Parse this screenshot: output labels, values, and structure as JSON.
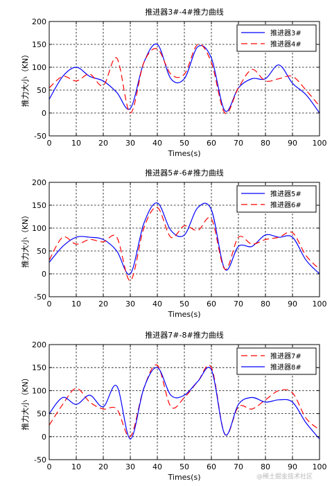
{
  "watermark": "@稀土掘金技术社区",
  "chart_data": [
    {
      "type": "line",
      "title": "推进器3#-4#推力曲线",
      "xlabel": "Times(s)",
      "ylabel": "推力大小（KN）",
      "xlim": [
        0,
        100
      ],
      "ylim": [
        -50,
        200
      ],
      "xticks": [
        "0",
        "10",
        "20",
        "30",
        "40",
        "50",
        "60",
        "70",
        "80",
        "90",
        "100"
      ],
      "yticks": [
        "200",
        "150",
        "100",
        "50",
        "0",
        "-50"
      ],
      "grid": true,
      "legend_position": "top-right",
      "x": [
        0,
        5,
        10,
        15,
        20,
        25,
        30,
        35,
        40,
        45,
        50,
        55,
        60,
        65,
        70,
        75,
        80,
        85,
        90,
        95,
        100
      ],
      "series": [
        {
          "name": "推进器3#",
          "color": "#0000ff",
          "style": "solid",
          "values": [
            30,
            80,
            100,
            80,
            70,
            45,
            10,
            110,
            150,
            75,
            75,
            145,
            120,
            5,
            55,
            75,
            75,
            105,
            65,
            40,
            0
          ]
        },
        {
          "name": "推进器4#",
          "color": "#ff0000",
          "style": "dashed",
          "values": [
            55,
            80,
            70,
            85,
            60,
            120,
            0,
            110,
            140,
            85,
            85,
            150,
            110,
            0,
            55,
            95,
            70,
            75,
            80,
            50,
            15
          ]
        }
      ]
    },
    {
      "type": "line",
      "title": "推进器5#-6#推力曲线",
      "xlabel": "Times(s)",
      "ylabel": "推力大小（KN）",
      "xlim": [
        0,
        100
      ],
      "ylim": [
        -50,
        200
      ],
      "xticks": [
        "0",
        "10",
        "20",
        "30",
        "40",
        "50",
        "60",
        "70",
        "80",
        "90",
        "100"
      ],
      "yticks": [
        "200",
        "150",
        "100",
        "50",
        "0",
        "-50"
      ],
      "grid": true,
      "legend_position": "top-right",
      "x": [
        0,
        5,
        10,
        15,
        20,
        25,
        30,
        35,
        40,
        45,
        50,
        55,
        60,
        65,
        70,
        75,
        80,
        85,
        90,
        95,
        100
      ],
      "series": [
        {
          "name": "推进器5#",
          "color": "#0000ff",
          "style": "solid",
          "values": [
            25,
            60,
            80,
            80,
            75,
            50,
            0,
            110,
            155,
            95,
            85,
            145,
            140,
            10,
            60,
            60,
            85,
            80,
            80,
            30,
            0
          ]
        },
        {
          "name": "推进器6#",
          "color": "#ff0000",
          "style": "dashed",
          "values": [
            30,
            80,
            65,
            75,
            70,
            80,
            -15,
            100,
            145,
            80,
            105,
            95,
            120,
            10,
            80,
            65,
            75,
            80,
            90,
            40,
            10
          ]
        }
      ]
    },
    {
      "type": "line",
      "title": "推进器7#-8#推力曲线",
      "xlabel": "Times(s)",
      "ylabel": "推力大小（KN）",
      "xlim": [
        0,
        100
      ],
      "ylim": [
        -50,
        200
      ],
      "xticks": [
        "0",
        "10",
        "20",
        "30",
        "40",
        "50",
        "60",
        "70",
        "80",
        "90",
        "100"
      ],
      "yticks": [
        "200",
        "150",
        "100",
        "50",
        "0",
        "-50"
      ],
      "grid": true,
      "legend_position": "top-right",
      "x": [
        0,
        5,
        10,
        15,
        20,
        25,
        30,
        35,
        40,
        45,
        50,
        55,
        60,
        65,
        70,
        75,
        80,
        85,
        90,
        95,
        100
      ],
      "series": [
        {
          "name": "推进器7#",
          "color": "#ff0000",
          "style": "dashed",
          "values": [
            25,
            70,
            105,
            75,
            60,
            60,
            0,
            105,
            155,
            65,
            85,
            120,
            150,
            5,
            65,
            60,
            80,
            100,
            95,
            40,
            15
          ]
        },
        {
          "name": "推进器8#",
          "color": "#0000ff",
          "style": "solid",
          "values": [
            50,
            85,
            70,
            90,
            65,
            110,
            -5,
            105,
            150,
            90,
            90,
            120,
            145,
            5,
            70,
            85,
            75,
            80,
            75,
            30,
            -5
          ]
        }
      ]
    }
  ]
}
